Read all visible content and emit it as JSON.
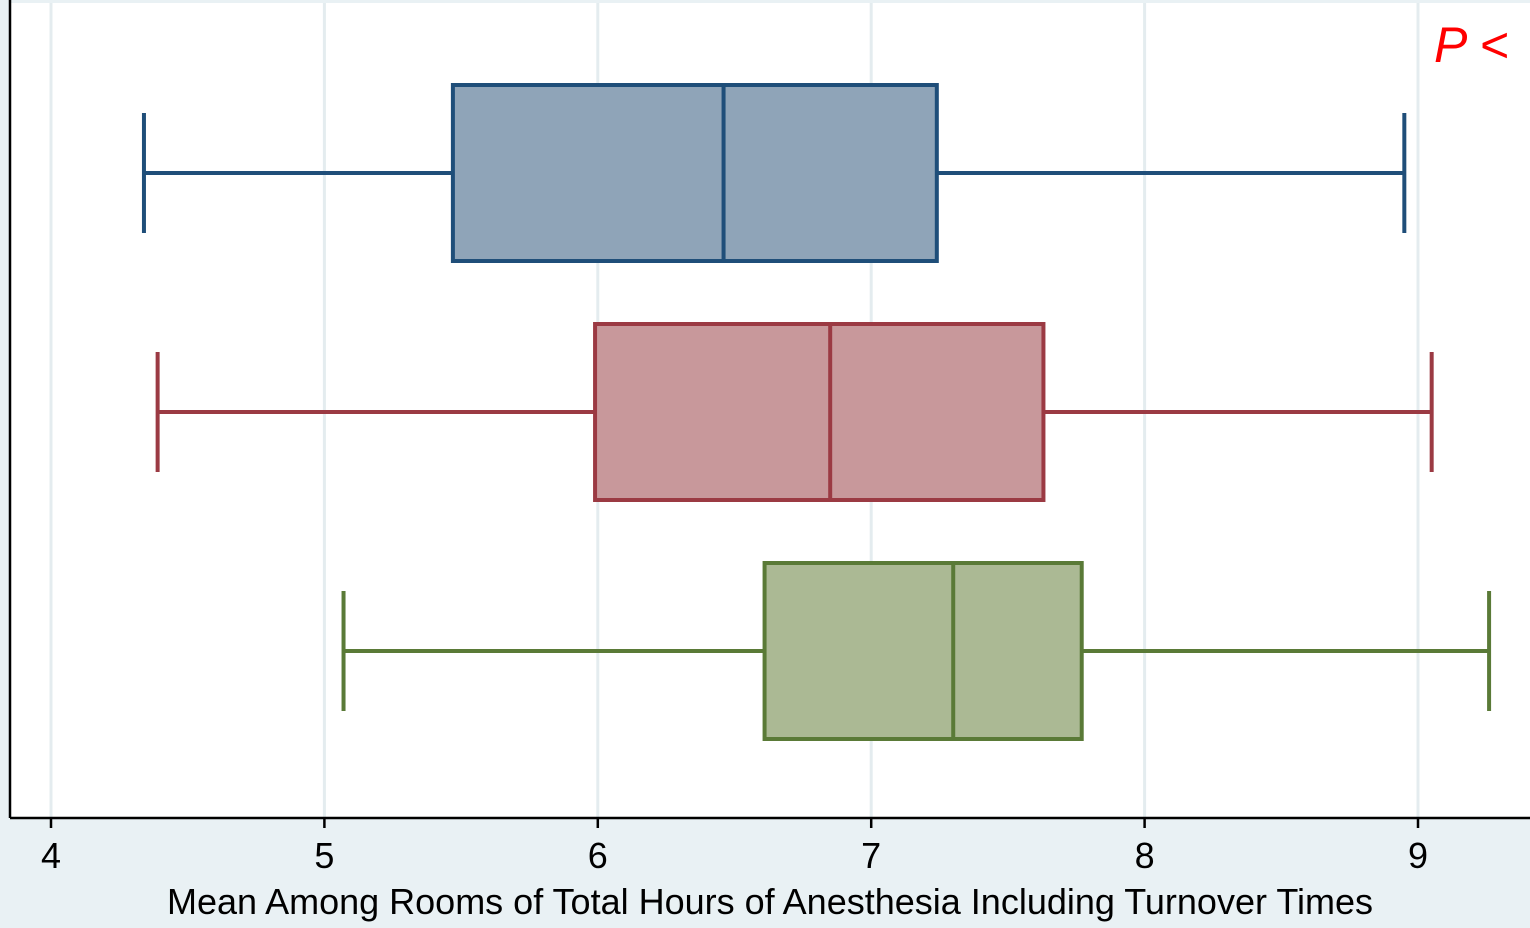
{
  "chart_data": {
    "type": "box",
    "orientation": "horizontal",
    "xlabel": "Mean Among Rooms of Total Hours of Anesthesia Including Turnover Times",
    "xlim": [
      4,
      9.4
    ],
    "xticks": [
      4,
      5,
      6,
      7,
      8,
      9
    ],
    "grid": true,
    "annotation": "P <",
    "annotation_color": "#ff0000",
    "boxes": [
      {
        "min": 4.34,
        "q1": 5.47,
        "median": 6.46,
        "q3": 7.24,
        "max": 8.95,
        "stroke": "#1f4e79",
        "fill": "#8fa4b8"
      },
      {
        "min": 4.39,
        "q1": 5.99,
        "median": 6.85,
        "q3": 7.63,
        "max": 9.05,
        "stroke": "#9b3a43",
        "fill": "#c8989b"
      },
      {
        "min": 5.07,
        "q1": 6.61,
        "median": 7.3,
        "q3": 7.77,
        "max": 9.26,
        "stroke": "#5a7a37",
        "fill": "#abb994"
      }
    ]
  }
}
